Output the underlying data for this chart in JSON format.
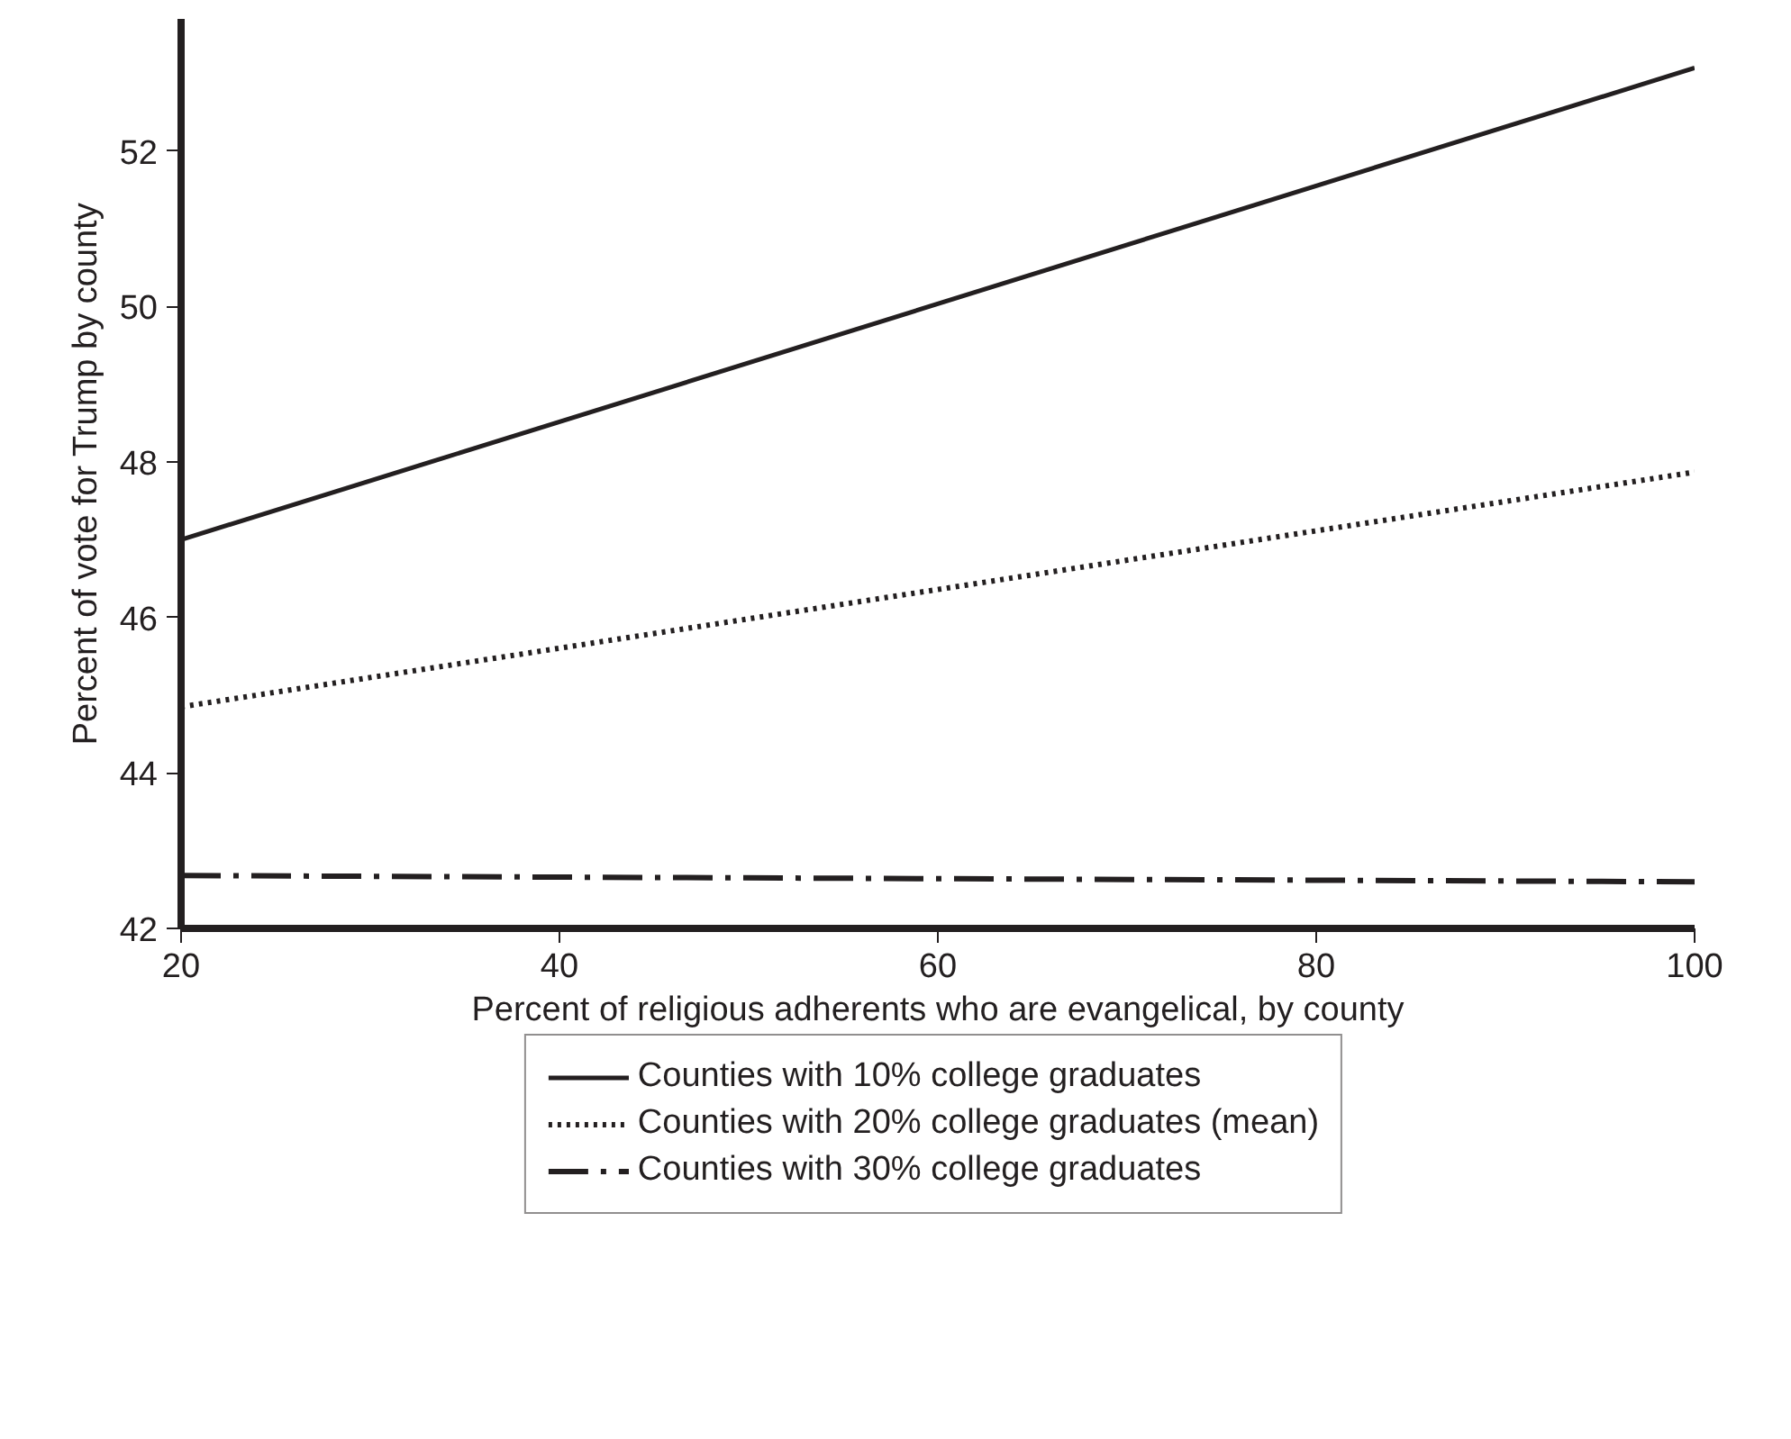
{
  "chart_data": {
    "type": "line",
    "xlabel": "Percent of religious adherents who are evangelical, by county",
    "ylabel": "Percent of vote for Trump by county",
    "x": [
      20,
      100
    ],
    "series": [
      {
        "name": "Counties with 10% college graduates",
        "color": "#231f20",
        "values": [
          47.0,
          53.07
        ],
        "line_style": "solid"
      },
      {
        "name": "Counties with 20% college graduates (mean)",
        "color": "#231f20",
        "values": [
          44.85,
          47.87
        ],
        "line_style": "dotted"
      },
      {
        "name": "Counties with 30% college graduates",
        "color": "#231f20",
        "values": [
          42.68,
          42.6
        ],
        "line_style": "dashdot"
      }
    ],
    "xlim": [
      20,
      100
    ],
    "ylim": [
      42,
      53.7
    ],
    "xticks": [
      20,
      40,
      60,
      80,
      100
    ],
    "yticks": [
      42,
      44,
      46,
      48,
      50,
      52
    ],
    "grid": false,
    "legend": "bottom",
    "marker": "none"
  }
}
